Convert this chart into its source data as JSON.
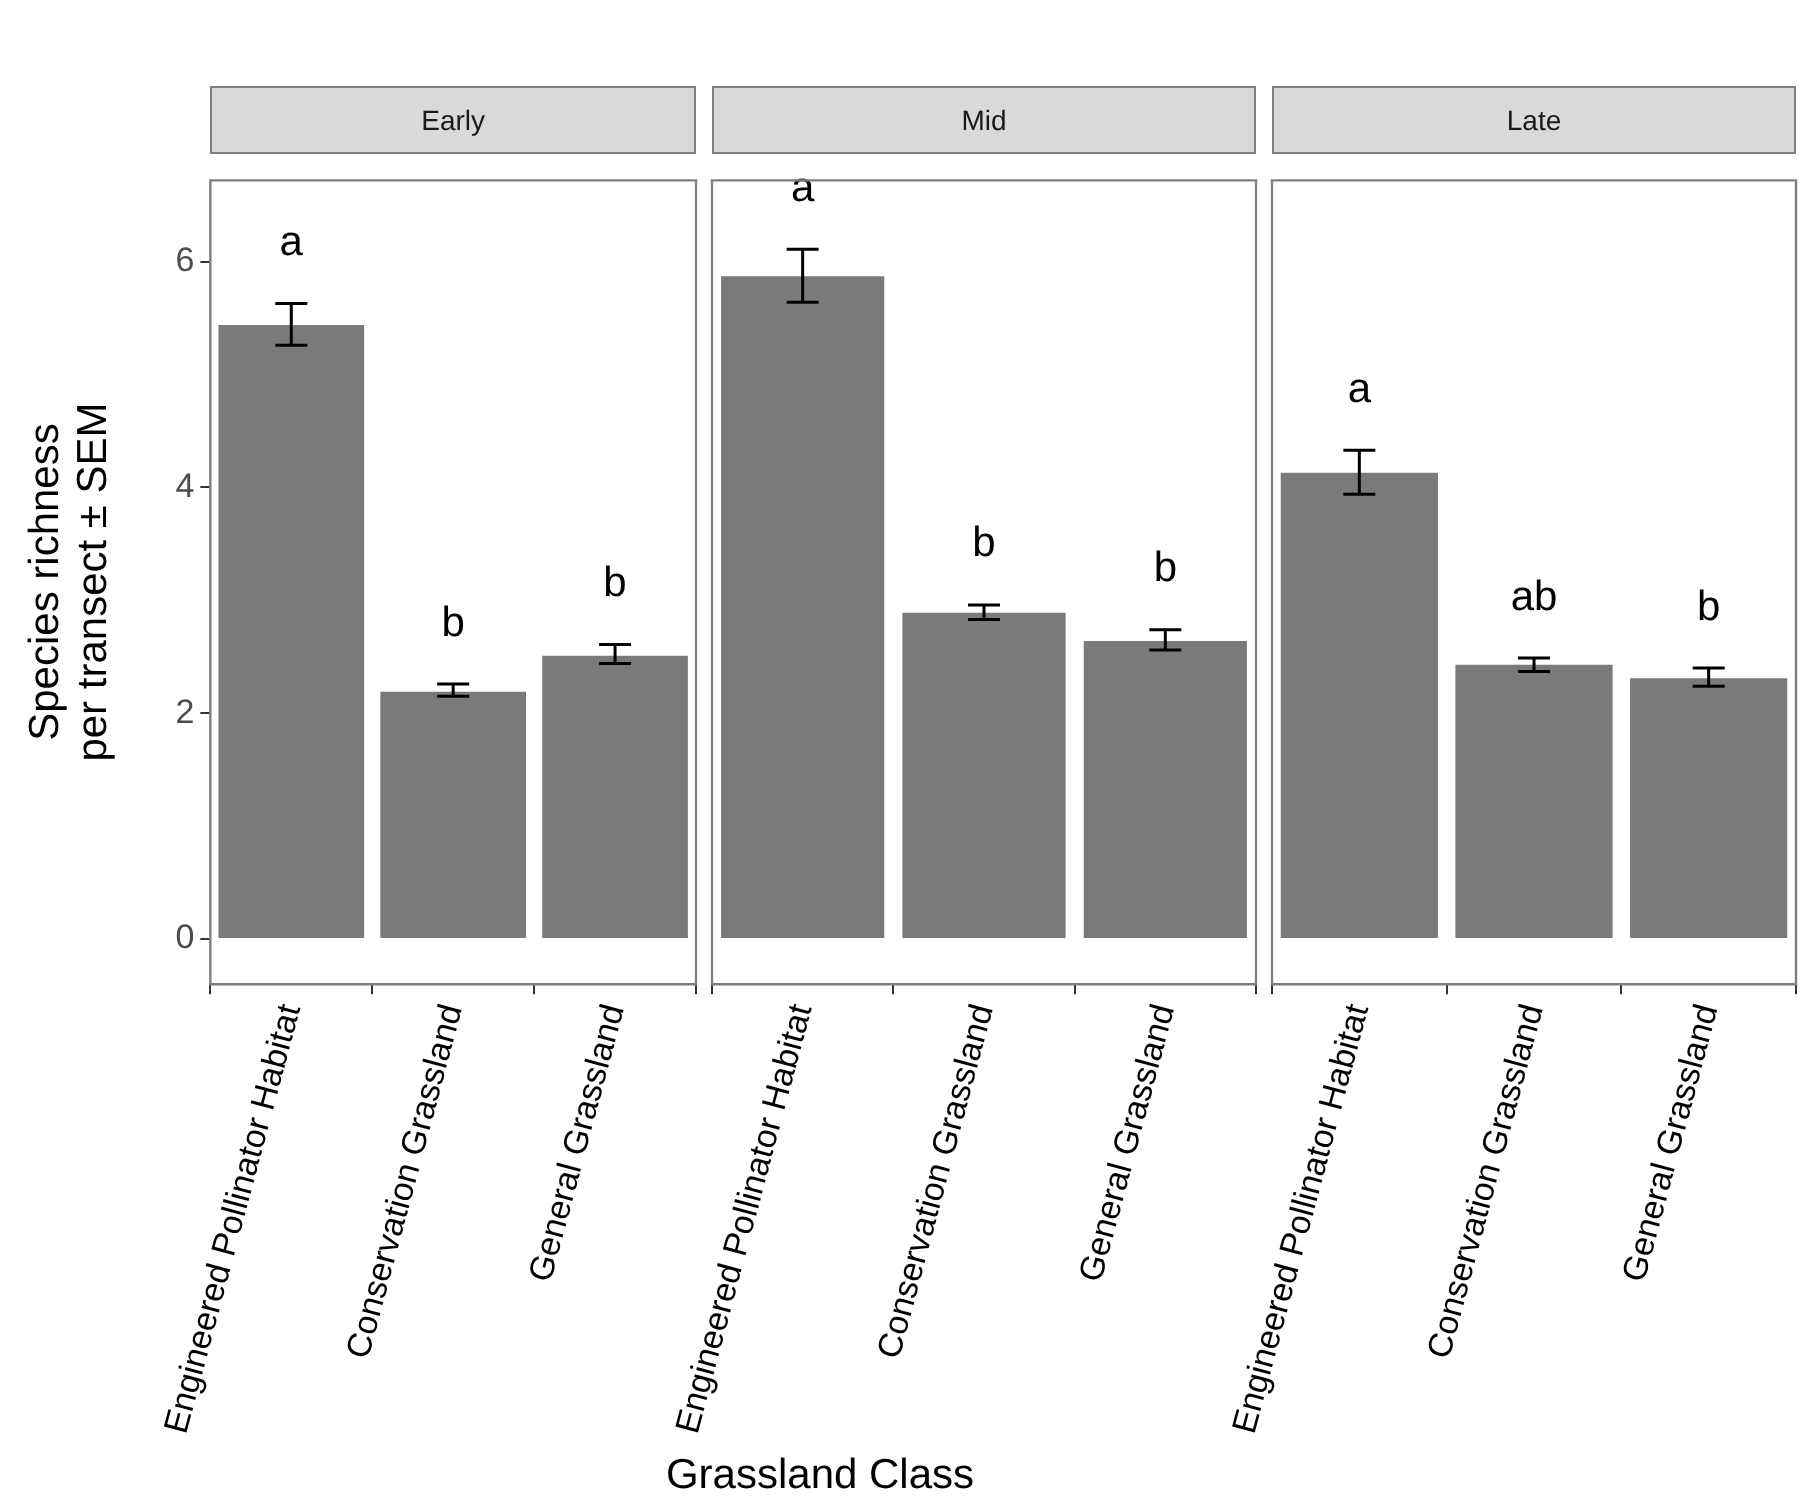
{
  "chart_data": [
    {
      "type": "bar",
      "title": "Early",
      "ylabel": "Species richness\nper transect ± SEM",
      "categories": [
        "Engineered Pollinator Habitat",
        "Conservation Grassland",
        "General Grassland"
      ],
      "values": [
        5.44,
        2.19,
        2.51
      ],
      "errors": [
        [
          5.26,
          5.63
        ],
        [
          2.15,
          2.26
        ],
        [
          2.44,
          2.61
        ]
      ],
      "color": "#7a7a7a",
      "ylim": [
        -0.4,
        6.72
      ],
      "yticks": [
        0,
        2,
        4,
        6
      ],
      "annotations": [
        "a",
        "b",
        "b"
      ]
    },
    {
      "type": "bar",
      "title": "Mid",
      "xlabel": "Grassland Class",
      "categories": [
        "Engineered Pollinator Habitat",
        "Conservation Grassland",
        "General Grassland"
      ],
      "values": [
        5.87,
        2.89,
        2.64
      ],
      "errors": [
        [
          5.64,
          6.11
        ],
        [
          2.83,
          2.96
        ],
        [
          2.56,
          2.74
        ]
      ],
      "color": "#7a7a7a",
      "ylim": [
        -0.4,
        6.72
      ],
      "yticks": [
        0,
        2,
        4,
        6
      ],
      "tick_labels": "x",
      "annotations": [
        "a",
        "b",
        "b"
      ]
    },
    {
      "type": "bar",
      "title": "Late",
      "categories": [
        "Engineered Pollinator Habitat",
        "Conservation Grassland",
        "General Grassland"
      ],
      "values": [
        4.13,
        2.43,
        2.31
      ],
      "errors": [
        [
          3.94,
          4.33
        ],
        [
          2.37,
          2.49
        ],
        [
          2.24,
          2.4
        ]
      ],
      "color": "#7a7a7a",
      "ylim": [
        -0.4,
        6.72
      ],
      "yticks": [
        0,
        2,
        4,
        6
      ],
      "tick_labels": "x",
      "annotations": [
        "a",
        "ab",
        "b"
      ]
    }
  ]
}
